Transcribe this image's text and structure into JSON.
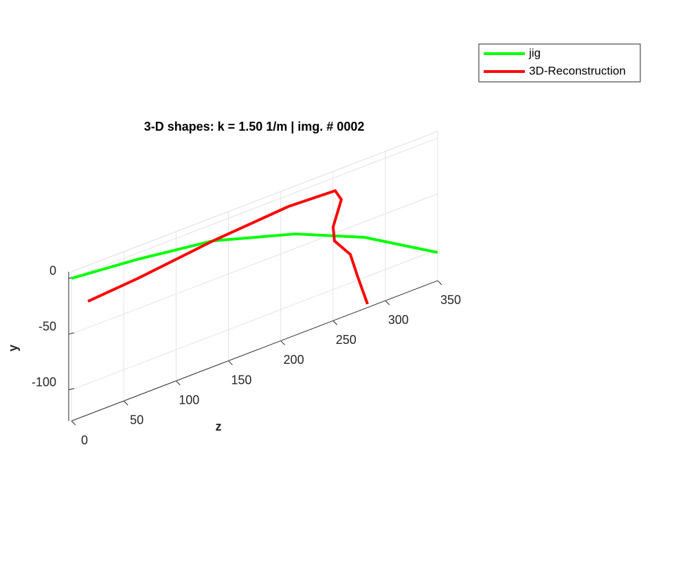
{
  "chart_data": {
    "type": "line3d",
    "title": "3-D shapes: k = 1.50 1/m | img. # 0002",
    "xlabel": "z",
    "ylabel": "y",
    "xlim": [
      0,
      350
    ],
    "xticks": [
      0,
      50,
      100,
      150,
      200,
      250,
      300,
      350
    ],
    "ylim": [
      -128,
      6
    ],
    "yticks": [
      -100,
      -50,
      0
    ],
    "grid": true,
    "legend": "northeast",
    "series": [
      {
        "name": "jig",
        "color": "#00ff00",
        "x": [
          0,
          63,
          135,
          214,
          280,
          350
        ],
        "values": [
          0,
          -5.6,
          -14.9,
          -37.1,
          -63.9,
          -102.7
        ]
      },
      {
        "name": "3D-Reconstruction",
        "color": "#ff0000",
        "x": [
          15.8,
          63,
          135.3,
          207.5,
          252.1,
          258,
          250.1,
          251.4,
          266.6,
          273.1,
          283
        ],
        "values": [
          -26.3,
          -22.9,
          -15,
          -10.1,
          -12,
          -22.1,
          -43.9,
          -56.8,
          -74.5,
          -95.4,
          -124.9
        ]
      }
    ]
  }
}
